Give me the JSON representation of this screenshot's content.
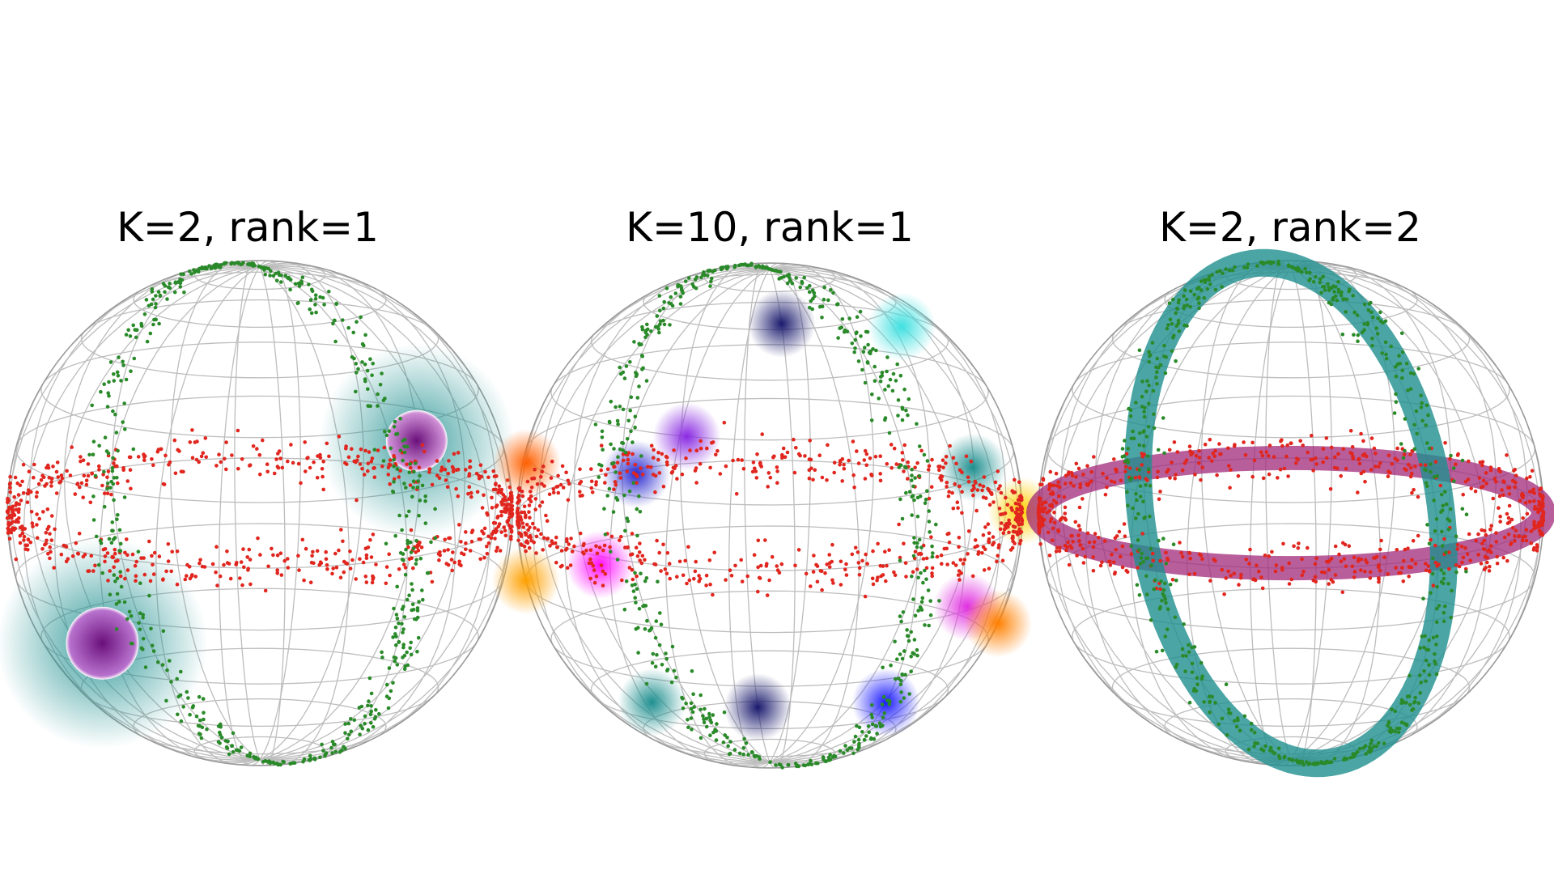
{
  "panels": [
    {
      "title": "K=2, rank=1"
    },
    {
      "title": "K=10, rank=1"
    },
    {
      "title": "K=2, rank=2"
    }
  ]
}
